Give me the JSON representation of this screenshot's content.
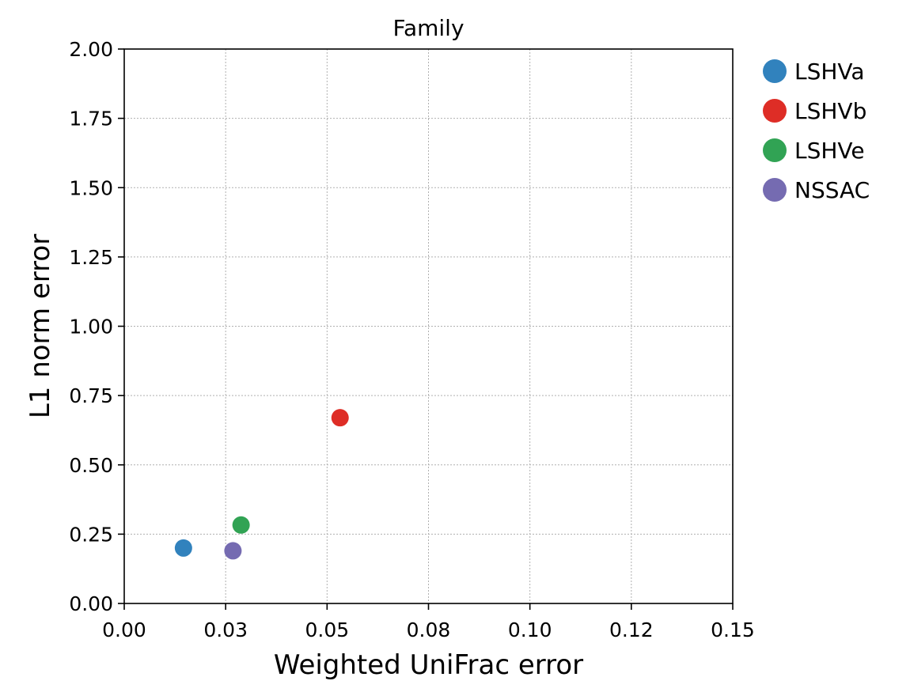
{
  "chart_data": {
    "type": "scatter",
    "title": "Family",
    "xlabel": "Weighted UniFrac error",
    "ylabel": "L1 norm error",
    "xlim": [
      0,
      0.15
    ],
    "ylim": [
      0,
      2.0
    ],
    "x_ticks": [
      0,
      0.025,
      0.05,
      0.075,
      0.1,
      0.125,
      0.15
    ],
    "x_tick_labels": [
      "0.00",
      "0.03",
      "0.05",
      "0.08",
      "0.10",
      "0.12",
      "0.15"
    ],
    "y_ticks": [
      0,
      0.25,
      0.5,
      0.75,
      1.0,
      1.25,
      1.5,
      1.75,
      2.0
    ],
    "y_tick_labels": [
      "0.00",
      "0.25",
      "0.50",
      "0.75",
      "1.00",
      "1.25",
      "1.50",
      "1.75",
      "2.00"
    ],
    "grid": true,
    "legend_position": "outside-right-top",
    "series": [
      {
        "name": "LSHVa",
        "color": "#3182bd",
        "x": [
          0.0146
        ],
        "y": [
          0.2
        ]
      },
      {
        "name": "LSHVb",
        "color": "#de2d26",
        "x": [
          0.0532
        ],
        "y": [
          0.67
        ]
      },
      {
        "name": "LSHVe",
        "color": "#31a354",
        "x": [
          0.0288
        ],
        "y": [
          0.283
        ]
      },
      {
        "name": "NSSAC",
        "color": "#756bb1",
        "x": [
          0.0268
        ],
        "y": [
          0.19
        ]
      }
    ]
  }
}
